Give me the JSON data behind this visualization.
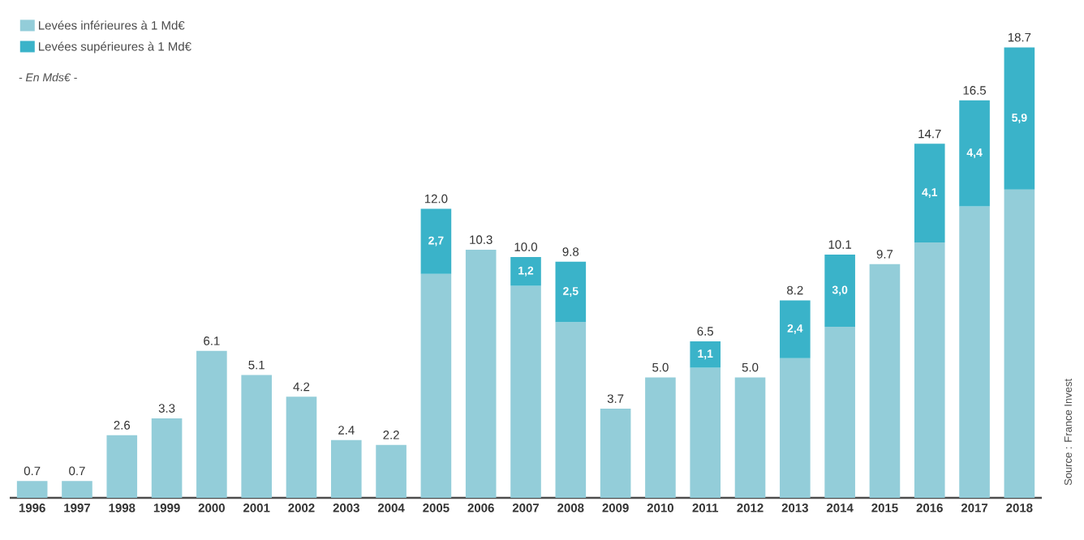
{
  "chart_data": {
    "type": "bar",
    "stacked": true,
    "subtitle": "- En Mds€ -",
    "categories": [
      "1996",
      "1997",
      "1998",
      "1999",
      "2000",
      "2001",
      "2002",
      "2003",
      "2004",
      "2005",
      "2006",
      "2007",
      "2008",
      "2009",
      "2010",
      "2011",
      "2012",
      "2013",
      "2014",
      "2015",
      "2016",
      "2017",
      "2018"
    ],
    "series": [
      {
        "name": "Levées inférieures à 1 Md€",
        "color": "#93cdd9",
        "values": [
          0.7,
          0.7,
          2.6,
          3.3,
          6.1,
          5.1,
          4.2,
          2.4,
          2.2,
          9.3,
          10.3,
          8.8,
          7.3,
          3.7,
          5.0,
          5.4,
          5.0,
          5.8,
          7.1,
          9.7,
          10.6,
          12.1,
          12.8
        ]
      },
      {
        "name": "Levées supérieures à 1 Md€",
        "color": "#3ab3c9",
        "values": [
          null,
          null,
          null,
          null,
          null,
          null,
          null,
          null,
          null,
          2.7,
          null,
          1.2,
          2.5,
          null,
          null,
          1.1,
          null,
          2.4,
          3.0,
          null,
          4.1,
          4.4,
          5.9
        ],
        "value_labels": [
          null,
          null,
          null,
          null,
          null,
          null,
          null,
          null,
          null,
          "2,7",
          null,
          "1,2",
          "2,5",
          null,
          null,
          "1,1",
          null,
          "2,4",
          "3,0",
          null,
          "4,1",
          "4,4",
          "5,9"
        ]
      }
    ],
    "totals": [
      "0.7",
      "0.7",
      "2.6",
      "3.3",
      "6.1",
      "5.1",
      "4.2",
      "2.4",
      "2.2",
      "12.0",
      "10.3",
      "10.0",
      "9.8",
      "3.7",
      "5.0",
      "6.5",
      "5.0",
      "8.2",
      "10.1",
      "9.7",
      "14.7",
      "16.5",
      "18.7"
    ],
    "legend": "top left",
    "annotations": [
      "Source : France Invest"
    ]
  }
}
